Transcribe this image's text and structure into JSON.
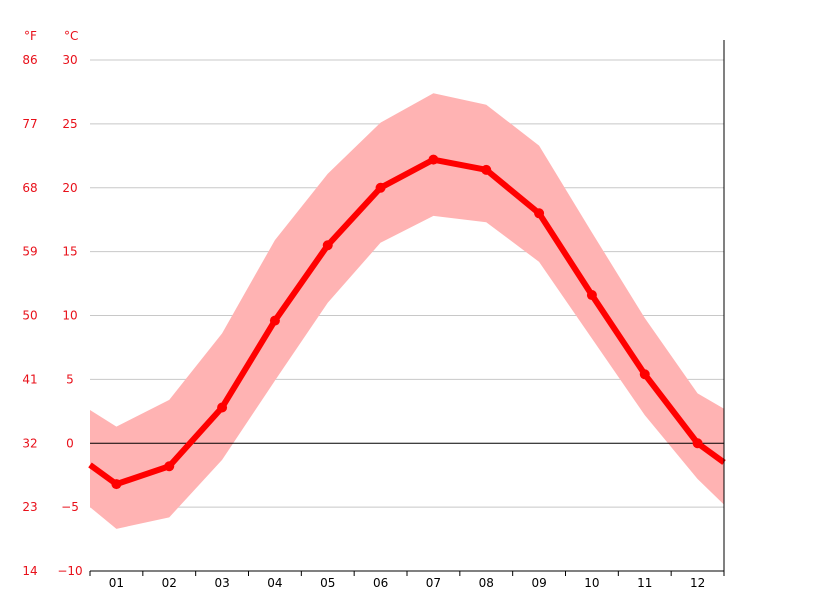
{
  "colors": {
    "line": "#ff0000",
    "band": "#ffb3b3",
    "axis_text": "#e8101a",
    "grid": "#c8c8c8",
    "zero_line": "#000000"
  },
  "units": {
    "fahrenheit": "°F",
    "celsius": "°C"
  },
  "chart_data": {
    "type": "line",
    "title": "",
    "xlabel": "",
    "ylabel": "",
    "categories": [
      "01",
      "02",
      "03",
      "04",
      "05",
      "06",
      "07",
      "08",
      "09",
      "10",
      "11",
      "12"
    ],
    "ylim": [
      -10,
      30
    ],
    "grid": true,
    "y_ticks_celsius": [
      "30",
      "25",
      "20",
      "15",
      "10",
      "5",
      "0",
      "-5",
      "-10"
    ],
    "y_ticks_fahrenheit": [
      "86",
      "77",
      "68",
      "59",
      "50",
      "41",
      "32",
      "23",
      "14"
    ],
    "series": [
      {
        "role": "average",
        "values": [
          -3.2,
          -1.8,
          2.8,
          9.6,
          15.5,
          20.0,
          22.2,
          21.4,
          18.0,
          11.6,
          5.4,
          0.0
        ],
        "edge_start": -1.7,
        "edge_end": -1.5
      },
      {
        "role": "band_max",
        "values": [
          1.3,
          3.4,
          8.6,
          15.9,
          21.1,
          25.1,
          27.4,
          26.5,
          23.3,
          16.5,
          9.8,
          3.9
        ],
        "edge_start": 2.6,
        "edge_end": 2.7
      },
      {
        "role": "band_min",
        "values": [
          -6.7,
          -5.8,
          -1.3,
          4.9,
          11.0,
          15.7,
          17.8,
          17.3,
          14.2,
          8.2,
          2.2,
          -2.8
        ],
        "edge_start": -5.0,
        "edge_end": -4.8
      }
    ]
  }
}
